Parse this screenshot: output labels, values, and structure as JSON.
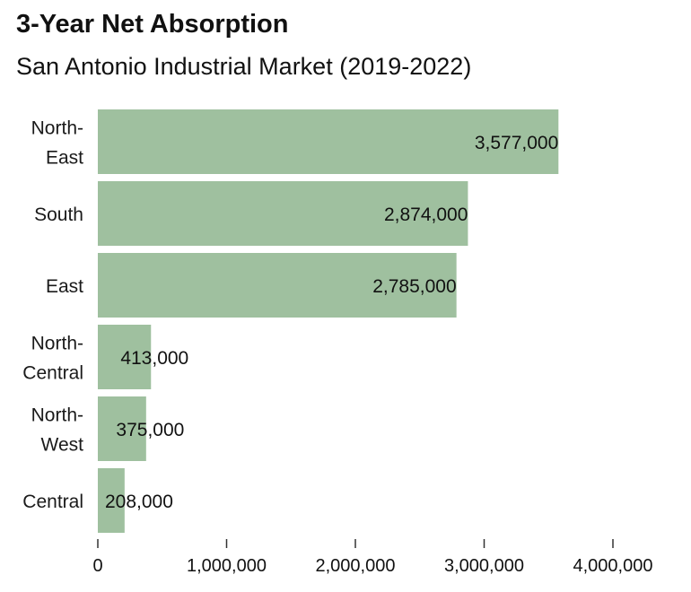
{
  "chart_data": {
    "type": "bar",
    "orientation": "horizontal",
    "title": "3-Year Net Absorption",
    "subtitle": "San Antonio Industrial Market (2019-2022)",
    "categories": [
      [
        "North-",
        "East"
      ],
      [
        "South"
      ],
      [
        "East"
      ],
      [
        "North-",
        "Central"
      ],
      [
        "North-",
        "West"
      ],
      [
        "Central"
      ]
    ],
    "values": [
      3577000,
      2874000,
      2785000,
      413000,
      375000,
      208000
    ],
    "value_labels": [
      "3,577,000",
      "2,874,000",
      "2,785,000",
      "413,000",
      "375,000",
      "208,000"
    ],
    "xlim": [
      0,
      4000000
    ],
    "x_ticks": [
      0,
      1000000,
      2000000,
      3000000,
      4000000
    ],
    "x_tick_labels": [
      "0",
      "1,000,000",
      "2,000,000",
      "3,000,000",
      "4,000,000"
    ],
    "xlabel": "",
    "ylabel": "",
    "grid": false,
    "legend": "none",
    "colors": {
      "bar": "#9fc09f",
      "text": "#111111",
      "axis": "#333333"
    }
  }
}
